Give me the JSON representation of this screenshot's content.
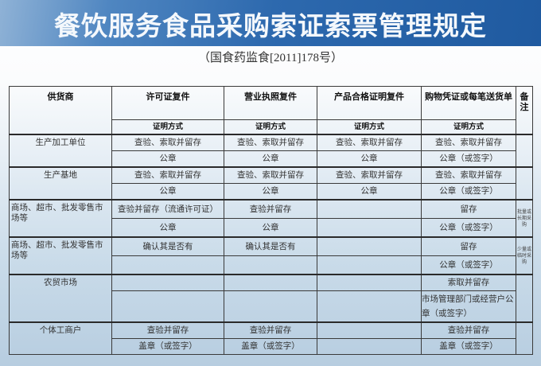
{
  "title": "餐饮服务食品采购索证索票管理规定",
  "subtitle": "（国食药监食[2011]178号）",
  "table": {
    "headers": [
      "供货商",
      "许可证复件",
      "营业执照复件",
      "产品合格证明复件",
      "购物凭证或每笔送货单",
      "备注"
    ],
    "subheader": "证明方式",
    "rows": [
      {
        "supplier": "生产加工单位",
        "lines": [
          [
            "查验、索取并留存",
            "查验、索取并留存",
            "查验、索取并留存",
            "查验、索取并留存"
          ],
          [
            "公章",
            "公章",
            "公章",
            "公章（或签字）"
          ]
        ],
        "note": ""
      },
      {
        "supplier": "生产基地",
        "lines": [
          [
            "查验、索取并留存",
            "查验、索取并留存",
            "查验、索取并留存",
            "查验、索取并留存"
          ],
          [
            "公章",
            "公章",
            "公章",
            "公章（或签字）"
          ]
        ],
        "note": ""
      },
      {
        "supplier": "商场、超市、批发零售市场等",
        "lines": [
          [
            "查验并留存（流通许可证）",
            "查验并留存",
            "",
            "留存"
          ],
          [
            "公章",
            "公章",
            "",
            "公章（或签字）"
          ]
        ],
        "note": "批量或长期采购"
      },
      {
        "supplier": "商场、超市、批发零售市场等",
        "lines": [
          [
            "确认其是否有",
            "确认其是否有",
            "",
            "留存"
          ],
          [
            "",
            "",
            "",
            "公章（或签字）"
          ]
        ],
        "note": "少量或临时采购"
      },
      {
        "supplier": "农贸市场",
        "lines": [
          [
            "",
            "",
            "",
            "索取并留存"
          ],
          [
            "",
            "",
            "",
            "市场管理部门或经营户公章（或签字）"
          ]
        ],
        "note": ""
      },
      {
        "supplier": "个体工商户",
        "lines": [
          [
            "查验并留存",
            "查验并留存",
            "",
            "查验并留存"
          ],
          [
            "盖章（或签字）",
            "盖章（或签字）",
            "",
            "盖章（或签字）"
          ]
        ],
        "note": ""
      }
    ]
  }
}
